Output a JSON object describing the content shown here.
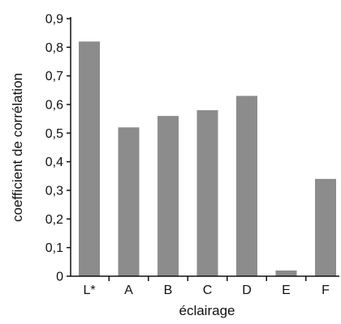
{
  "chart_data": {
    "type": "bar",
    "title": "",
    "xlabel": "éclairage",
    "ylabel": "coefficient de corrélation",
    "categories": [
      "L*",
      "A",
      "B",
      "C",
      "D",
      "E",
      "F"
    ],
    "values": [
      0.82,
      0.52,
      0.56,
      0.58,
      0.63,
      0.02,
      0.34
    ],
    "ylim": [
      0,
      0.9
    ],
    "yticks": [
      "0",
      "0,1",
      "0,2",
      "0,3",
      "0,4",
      "0,5",
      "0,6",
      "0,7",
      "0,8",
      "0,9"
    ],
    "grid": false,
    "legend": "none",
    "colors": {
      "bar": "#8c8c8c",
      "axis": "#111111",
      "text": "#111111"
    }
  }
}
